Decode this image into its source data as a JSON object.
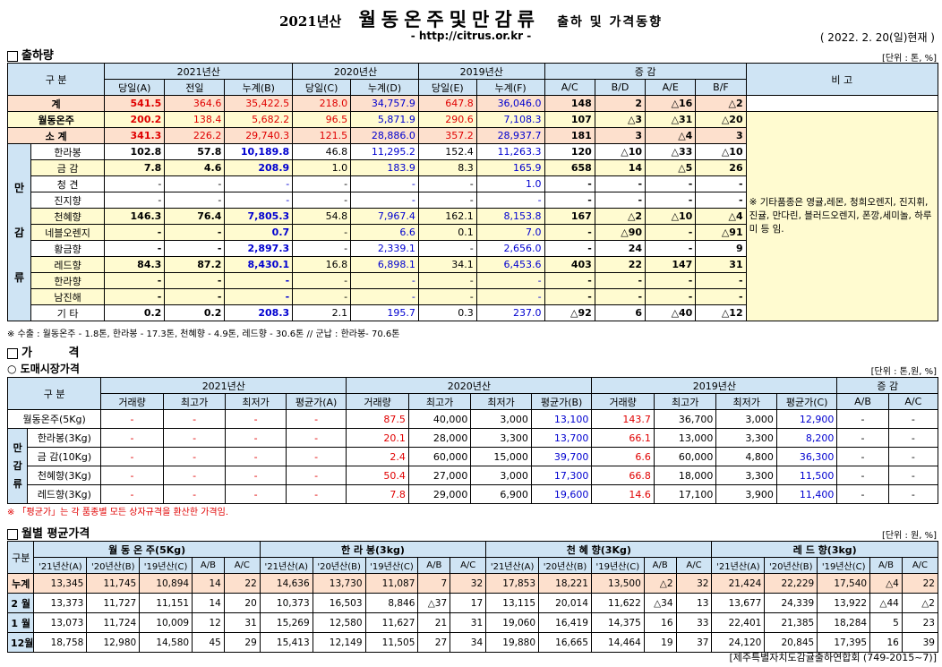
{
  "header": {
    "year_label": "2021년산",
    "main_title": "월동온주및만감류",
    "sub_title": "출하 및 가격동향",
    "url": "- http://citrus.or.kr -",
    "date": "( 2022. 2. 20(일)현재 )"
  },
  "shipment": {
    "section_title": "출하량",
    "unit": "[단위 : 톤, %]",
    "h_category": "구 분",
    "h_2021": "2021년산",
    "h_2020": "2020년산",
    "h_2019": "2019년산",
    "h_change": "증 감",
    "h_note": "비 고",
    "cols": [
      "당일(A)",
      "전일",
      "누계(B)",
      "당일(C)",
      "누계(D)",
      "당일(E)",
      "누계(F)",
      "A/C",
      "B/D",
      "A/E",
      "B/F"
    ],
    "manggam_label": [
      "만",
      "감",
      "류"
    ],
    "rows": [
      {
        "name": "계",
        "v": [
          "541.5",
          "364.6",
          "35,422.5",
          "218.0",
          "34,757.9",
          "647.8",
          "36,046.0",
          "148",
          "2",
          "△16",
          "△2"
        ]
      },
      {
        "name": "월동온주",
        "v": [
          "200.2",
          "138.4",
          "5,682.2",
          "96.5",
          "5,871.9",
          "290.6",
          "7,108.3",
          "107",
          "△3",
          "△31",
          "△20"
        ]
      },
      {
        "name": "소 계",
        "v": [
          "341.3",
          "226.2",
          "29,740.3",
          "121.5",
          "28,886.0",
          "357.2",
          "28,937.7",
          "181",
          "3",
          "△4",
          "3"
        ]
      },
      {
        "name": "한라봉",
        "v": [
          "102.8",
          "57.8",
          "10,189.8",
          "46.8",
          "11,295.2",
          "152.4",
          "11,263.3",
          "120",
          "△10",
          "△33",
          "△10"
        ]
      },
      {
        "name": "금 감",
        "v": [
          "7.8",
          "4.6",
          "208.9",
          "1.0",
          "183.9",
          "8.3",
          "165.9",
          "658",
          "14",
          "△5",
          "26"
        ]
      },
      {
        "name": "청 견",
        "v": [
          "-",
          "-",
          "-",
          "-",
          "-",
          "-",
          "1.0",
          "-",
          "-",
          "-",
          "-"
        ]
      },
      {
        "name": "진지향",
        "v": [
          "-",
          "-",
          "-",
          "-",
          "-",
          "-",
          "-",
          "-",
          "-",
          "-",
          "-"
        ]
      },
      {
        "name": "천혜향",
        "v": [
          "146.3",
          "76.4",
          "7,805.3",
          "54.8",
          "7,967.4",
          "162.1",
          "8,153.8",
          "167",
          "△2",
          "△10",
          "△4"
        ]
      },
      {
        "name": "네블오렌지",
        "v": [
          "-",
          "-",
          "0.7",
          "-",
          "6.6",
          "0.1",
          "7.0",
          "-",
          "△90",
          "-",
          "△91"
        ]
      },
      {
        "name": "황금향",
        "v": [
          "-",
          "-",
          "2,897.3",
          "-",
          "2,339.1",
          "-",
          "2,656.0",
          "-",
          "24",
          "-",
          "9"
        ]
      },
      {
        "name": "레드향",
        "v": [
          "84.3",
          "87.2",
          "8,430.1",
          "16.8",
          "6,898.1",
          "34.1",
          "6,453.6",
          "403",
          "22",
          "147",
          "31"
        ]
      },
      {
        "name": "한라향",
        "v": [
          "-",
          "-",
          "-",
          "-",
          "-",
          "-",
          "-",
          "-",
          "-",
          "-",
          "-"
        ]
      },
      {
        "name": "남진해",
        "v": [
          "-",
          "-",
          "-",
          "-",
          "-",
          "-",
          "-",
          "-",
          "-",
          "-",
          "-"
        ]
      },
      {
        "name": "기 타",
        "v": [
          "0.2",
          "0.2",
          "208.3",
          "2.1",
          "195.7",
          "0.3",
          "237.0",
          "△92",
          "6",
          "△40",
          "△12"
        ]
      }
    ],
    "note": "※ 기타품종은 영귤,레몬, 청희오렌지, 진지휘, 진귤, 만다린, 블러드오렌지, 폰깡,세미놀, 하루미 등 임.",
    "footnote": "※ 수출 : 월동온주 - 1.8톤, 한라봉 - 17.3톤, 천혜향 - 4.9톤, 레드향 - 30.6톤 // 군납 : 한라봉- 70.6톤"
  },
  "price": {
    "section_title": "가 격",
    "sub_title": "○ 도매시장가격",
    "unit": "[단위 : 톤,원, %]",
    "h_category": "구 분",
    "h_2021": "2021년산",
    "h_2020": "2020년산",
    "h_2019": "2019년산",
    "h_change": "증 감",
    "cols": [
      "거래량",
      "최고가",
      "최저가",
      "평균가(A)",
      "거래량",
      "최고가",
      "최저가",
      "평균가(B)",
      "거래량",
      "최고가",
      "최저가",
      "평균가(C)",
      "A/B",
      "A/C"
    ],
    "manggam_label": [
      "만",
      "감",
      "류"
    ],
    "rows": [
      {
        "name": "월동온주(5Kg)",
        "v": [
          "-",
          "-",
          "-",
          "-",
          "87.5",
          "40,000",
          "3,000",
          "13,100",
          "143.7",
          "36,700",
          "3,000",
          "12,900",
          "-",
          "-"
        ]
      },
      {
        "name": "한라봉(3Kg)",
        "v": [
          "-",
          "-",
          "-",
          "-",
          "20.1",
          "28,000",
          "3,300",
          "13,700",
          "66.1",
          "13,000",
          "3,300",
          "8,200",
          "-",
          "-"
        ]
      },
      {
        "name": "금 감(10Kg)",
        "v": [
          "-",
          "-",
          "-",
          "-",
          "2.4",
          "60,000",
          "15,000",
          "39,700",
          "6.6",
          "60,000",
          "4,800",
          "36,300",
          "-",
          "-"
        ]
      },
      {
        "name": "천혜향(3Kg)",
        "v": [
          "-",
          "-",
          "-",
          "-",
          "50.4",
          "27,000",
          "3,000",
          "17,300",
          "66.8",
          "18,000",
          "3,300",
          "11,500",
          "-",
          "-"
        ]
      },
      {
        "name": "레드향(3Kg)",
        "v": [
          "-",
          "-",
          "-",
          "-",
          "7.8",
          "29,000",
          "6,900",
          "19,600",
          "14.6",
          "17,100",
          "3,900",
          "11,400",
          "-",
          "-"
        ]
      }
    ],
    "footnote": "※ 「평균가」는 각 품종별 모든 상자규격을 환산한 가격임."
  },
  "monthly": {
    "section_title": "월별 평균가격",
    "unit": "[단위 : 원, %]",
    "h_category": "구분",
    "groups": [
      "월 동 온 주(5Kg)",
      "한 라 봉(3kg)",
      "천 혜 향(3Kg)",
      "레 드 향(3kg)"
    ],
    "cols": [
      "'21년산(A)",
      "'20년산(B)",
      "'19년산(C)",
      "A/B",
      "A/C"
    ],
    "rows": [
      {
        "name": "누계",
        "v": [
          "13,345",
          "11,745",
          "10,894",
          "14",
          "22",
          "14,636",
          "13,730",
          "11,087",
          "7",
          "32",
          "17,853",
          "18,221",
          "13,500",
          "△2",
          "32",
          "21,424",
          "22,229",
          "17,540",
          "△4",
          "22"
        ]
      },
      {
        "name": "2 월",
        "v": [
          "13,373",
          "11,727",
          "11,151",
          "14",
          "20",
          "10,373",
          "16,503",
          "8,846",
          "△37",
          "17",
          "13,115",
          "20,014",
          "11,622",
          "△34",
          "13",
          "13,677",
          "24,339",
          "13,922",
          "△44",
          "△2"
        ]
      },
      {
        "name": "1 월",
        "v": [
          "13,073",
          "11,724",
          "10,009",
          "12",
          "31",
          "15,269",
          "12,580",
          "11,627",
          "21",
          "31",
          "19,060",
          "16,419",
          "14,375",
          "16",
          "33",
          "22,401",
          "21,385",
          "18,284",
          "5",
          "23"
        ]
      },
      {
        "name": "12월",
        "v": [
          "18,758",
          "12,980",
          "14,580",
          "45",
          "29",
          "15,413",
          "12,149",
          "11,505",
          "27",
          "34",
          "19,880",
          "16,665",
          "14,464",
          "19",
          "37",
          "24,120",
          "20,845",
          "17,395",
          "16",
          "39"
        ]
      }
    ],
    "footer": "[제주특별자치도감귤출하연합회 (749-2015~7)]"
  }
}
